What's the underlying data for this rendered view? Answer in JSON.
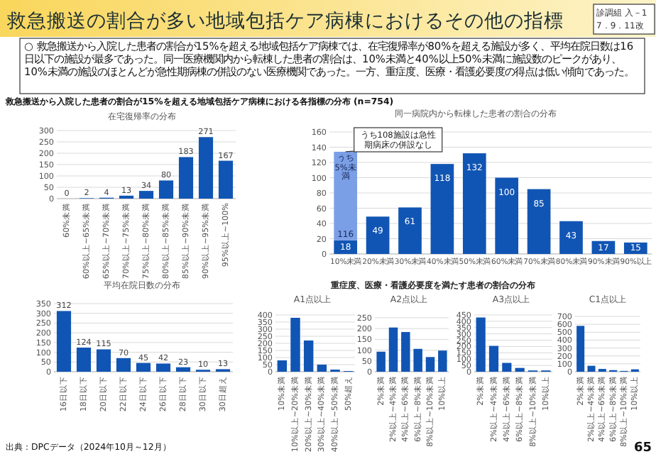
{
  "chart_data": [
    {
      "type": "other",
      "title": "救急搬送の割合が多い地域包括ケア病棟におけるその他の指標",
      "annotations": [
        "診調組 入－1",
        "7．9．11改",
        "○ 救急搬送から入院した患者の割合が15%を超える地域包括ケア病棟では、在宅復帰率が80%を超える施設が多く、平均在院日数は16日以下の施設が最多であった。同一医療機関内から転棟した患者の割合は、10%未満と40%以上50%未満に施設数のピークがあり、10%未満の施設のほとんどが急性期病棟の併設のない医療機関であった。一方、重症度、医療・看護必要度の得点は低い傾向であった。",
        "救急搬送から入院した患者の割合が15%を超える地域包括ケア病棟における各指標の分布 (n=754)",
        "重症度、医療・看護必要度を満たす患者の割合の分布",
        "出典：DPCデータ（2024年10月～12月）",
        "65"
      ]
    },
    {
      "type": "bar",
      "title": "在宅復帰率の分布",
      "categories": [
        "60%未満",
        "60%以上~65%未満",
        "65%以上~70%未満",
        "70%以上~75%未満",
        "75%以上~80%未満",
        "80%以上~85%未満",
        "85%以上~90%未満",
        "90%以上~95%未満",
        "95%以上~100%"
      ],
      "values": [
        0,
        2,
        4,
        13,
        34,
        80,
        183,
        271,
        167
      ],
      "color": "#1155b4",
      "ylim": [
        0,
        300
      ],
      "yticks": [
        0,
        50,
        100,
        150,
        200,
        250,
        300
      ],
      "grid": "y",
      "data_labels": true
    },
    {
      "type": "bar",
      "title": "同一病院内から転棟した患者の割合の分布",
      "categories": [
        "10%未満",
        "20%未満",
        "30%未満",
        "40%未満",
        "50%未満",
        "60%未満",
        "70%未満",
        "80%未満",
        "90%未満",
        "90%以上"
      ],
      "stacked": true,
      "series": [
        {
          "color": "#1155b4",
          "values": [
            18,
            49,
            61,
            118,
            132,
            100,
            85,
            43,
            17,
            15
          ]
        },
        {
          "name": "うち5%未満",
          "color": "#7b9fe6",
          "values": [
            116,
            null,
            null,
            null,
            null,
            null,
            null,
            null,
            null,
            null
          ]
        }
      ],
      "ylim": [
        0,
        160
      ],
      "yticks": [
        0,
        20,
        40,
        60,
        80,
        100,
        120,
        140,
        160
      ],
      "grid": "y",
      "data_labels": true,
      "annotations": [
        {
          "text": "うち108施設は急性期病床の併設なし",
          "x": "10%未満",
          "y": 134
        }
      ]
    },
    {
      "type": "bar",
      "title": "平均在院日数の分布",
      "categories": [
        "16日以下",
        "18日以下",
        "20日以下",
        "22日以下",
        "24日以下",
        "26日以下",
        "28日以下",
        "30日以下",
        "30日超え"
      ],
      "values": [
        312,
        124,
        115,
        70,
        45,
        42,
        23,
        10,
        13
      ],
      "color": "#1155b4",
      "ylim": [
        0,
        350
      ],
      "yticks": [
        0,
        50,
        100,
        150,
        200,
        250,
        300,
        350
      ],
      "grid": "y",
      "data_labels": true
    },
    {
      "type": "bar",
      "title": "A1点以上",
      "categories": [
        "10%未満",
        "10%以上~20%未満",
        "20%以上~30%未満",
        "30%以上~40%未満",
        "40%以上~50%未満",
        "50%超え"
      ],
      "values": [
        80,
        380,
        220,
        50,
        15,
        5
      ],
      "color": "#1155b4",
      "ylim": [
        0,
        400
      ],
      "yticks": [
        0,
        50,
        100,
        150,
        200,
        250,
        300,
        350,
        400
      ],
      "grid": "y"
    },
    {
      "type": "bar",
      "title": "A2点以上",
      "categories": [
        "2%未満",
        "2%以上~4%未満",
        "4%以上~6%未満",
        "6%以上~8%未満",
        "8%以上~10%未満",
        "10%以上"
      ],
      "values": [
        93,
        205,
        184,
        106,
        68,
        98
      ],
      "color": "#1155b4",
      "ylim": [
        0,
        250
      ],
      "yticks": [
        0,
        50,
        100,
        150,
        200,
        250
      ],
      "grid": "y"
    },
    {
      "type": "bar",
      "title": "A3点以上",
      "categories": [
        "2%未満",
        "2%以上~4%未満",
        "4%以上~6%未満",
        "6%以上~8%未満",
        "8%以上~10%未満",
        "10%以上"
      ],
      "values": [
        430,
        205,
        70,
        30,
        10,
        10
      ],
      "color": "#1155b4",
      "ylim": [
        0,
        450
      ],
      "yticks": [
        0,
        50,
        100,
        150,
        200,
        250,
        300,
        350,
        400,
        450
      ],
      "grid": "y"
    },
    {
      "type": "bar",
      "title": "C1点以上",
      "categories": [
        "2%未満",
        "2%以上~4%未満",
        "4%以上~6%未満",
        "6%以上~8%未満",
        "8%以上~10%未満",
        "10%以上"
      ],
      "values": [
        580,
        75,
        35,
        20,
        10,
        30
      ],
      "color": "#1155b4",
      "ylim": [
        0,
        700
      ],
      "yticks": [
        0,
        100,
        200,
        300,
        400,
        500,
        600,
        700
      ],
      "grid": "y"
    }
  ]
}
